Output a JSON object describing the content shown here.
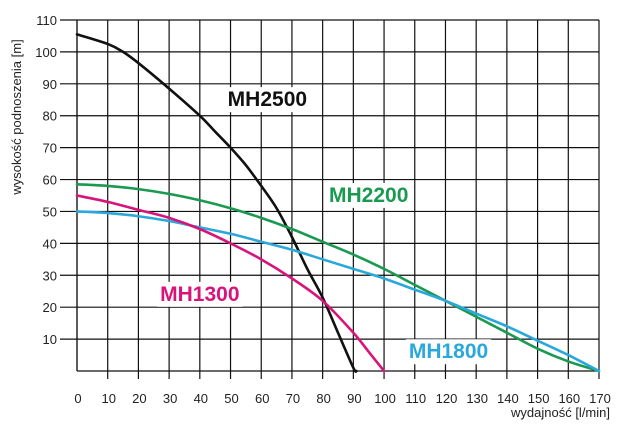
{
  "chart_data": {
    "type": "line",
    "title": "",
    "xlabel": "wydajność [l/min]",
    "ylabel": "wysokość podnoszenia [m]",
    "xlim": [
      0,
      170
    ],
    "ylim": [
      0,
      110
    ],
    "grid": true,
    "legend": "inline-labels",
    "x_ticks": [
      "0",
      "10",
      "20",
      "30",
      "40",
      "50",
      "60",
      "70",
      "80",
      "90",
      "100",
      "110",
      "120",
      "130",
      "140",
      "150",
      "160",
      "170"
    ],
    "y_ticks": [
      "10",
      "20",
      "30",
      "40",
      "50",
      "60",
      "70",
      "80",
      "90",
      "100",
      "110"
    ],
    "series": [
      {
        "name": "MH2500",
        "color": "#111111",
        "points": [
          [
            0,
            105.5
          ],
          [
            10,
            102.5
          ],
          [
            15,
            100
          ],
          [
            20,
            96.5
          ],
          [
            30,
            88.5
          ],
          [
            40,
            80
          ],
          [
            45,
            75
          ],
          [
            50,
            70
          ],
          [
            55,
            64.5
          ],
          [
            60,
            58
          ],
          [
            65,
            51
          ],
          [
            70,
            42
          ],
          [
            75,
            32
          ],
          [
            80,
            23
          ],
          [
            85,
            12
          ],
          [
            90,
            1
          ],
          [
            91,
            0
          ]
        ]
      },
      {
        "name": "MH2200",
        "color": "#1a9950",
        "points": [
          [
            0,
            58.5
          ],
          [
            10,
            58
          ],
          [
            20,
            57
          ],
          [
            30,
            55.5
          ],
          [
            40,
            53.5
          ],
          [
            50,
            51
          ],
          [
            60,
            48
          ],
          [
            70,
            44.5
          ],
          [
            80,
            40.5
          ],
          [
            90,
            36.5
          ],
          [
            100,
            32
          ],
          [
            110,
            27
          ],
          [
            120,
            22
          ],
          [
            130,
            17
          ],
          [
            140,
            12
          ],
          [
            150,
            7
          ],
          [
            160,
            3
          ],
          [
            170,
            0
          ]
        ]
      },
      {
        "name": "MH1800",
        "color": "#2aa8dc",
        "points": [
          [
            0,
            50
          ],
          [
            10,
            49.5
          ],
          [
            20,
            48.5
          ],
          [
            30,
            47
          ],
          [
            40,
            45
          ],
          [
            50,
            43
          ],
          [
            60,
            40.5
          ],
          [
            70,
            38
          ],
          [
            80,
            35
          ],
          [
            90,
            32
          ],
          [
            100,
            29
          ],
          [
            110,
            25.5
          ],
          [
            120,
            22
          ],
          [
            130,
            18
          ],
          [
            140,
            14
          ],
          [
            150,
            9.5
          ],
          [
            160,
            5
          ],
          [
            170,
            0
          ]
        ]
      },
      {
        "name": "MH1300",
        "color": "#d8147a",
        "points": [
          [
            0,
            55
          ],
          [
            10,
            53
          ],
          [
            20,
            50.5
          ],
          [
            30,
            48
          ],
          [
            40,
            44.5
          ],
          [
            50,
            40
          ],
          [
            60,
            35
          ],
          [
            70,
            29
          ],
          [
            80,
            22
          ],
          [
            90,
            12
          ],
          [
            95,
            6
          ],
          [
            100,
            0
          ]
        ]
      }
    ],
    "annotations": [
      {
        "text": "MH2500",
        "series": "MH2500",
        "x": 62,
        "y": 83
      },
      {
        "text": "MH2200",
        "series": "MH2200",
        "x": 95,
        "y": 53
      },
      {
        "text": "MH1300",
        "series": "MH1300",
        "x": 40,
        "y": 22
      },
      {
        "text": "MH1800",
        "series": "MH1800",
        "x": 121,
        "y": 4
      }
    ]
  }
}
